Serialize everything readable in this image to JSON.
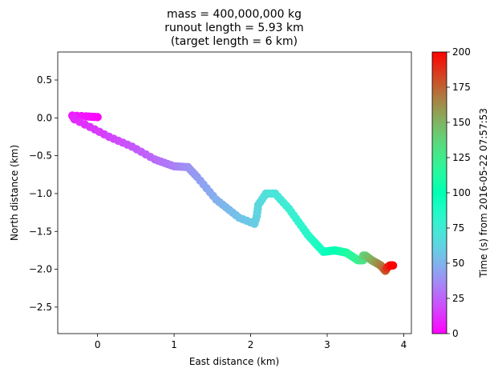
{
  "chart_data": {
    "type": "scatter",
    "title_lines": [
      "mass = 400,000,000 kg",
      "runout length = 5.93 km",
      "(target length = 6 km)"
    ],
    "xlabel": "East distance (km)",
    "ylabel": "North distance (km)",
    "xlim": [
      -0.52,
      4.1
    ],
    "ylim": [
      -2.85,
      0.87
    ],
    "xticks": [
      0,
      1,
      2,
      3,
      4
    ],
    "yticks": [
      0.5,
      0.0,
      -0.5,
      -1.0,
      -1.5,
      -2.0,
      -2.5
    ],
    "xtick_labels": [
      "0",
      "1",
      "2",
      "3",
      "4"
    ],
    "ytick_labels": [
      "0.5",
      "0.0",
      "−0.5",
      "−1.0",
      "−1.5",
      "−2.0",
      "−2.5"
    ],
    "grid": false,
    "colorbar": {
      "label": "Time (s) from 2016-05-22 07:57:53",
      "min": 0,
      "max": 200,
      "ticks": [
        0,
        25,
        50,
        75,
        100,
        125,
        150,
        175,
        200
      ],
      "tick_labels": [
        "0",
        "25",
        "50",
        "75",
        "100",
        "125",
        "150",
        "175",
        "200"
      ],
      "colormap": "rainbow"
    },
    "trajectory_keypoints": [
      {
        "t": 0,
        "x": 0.0,
        "y": 0.01
      },
      {
        "t": 4,
        "x": -0.15,
        "y": 0.02
      },
      {
        "t": 7,
        "x": -0.33,
        "y": 0.03
      },
      {
        "t": 10,
        "x": -0.3,
        "y": -0.02
      },
      {
        "t": 13,
        "x": -0.1,
        "y": -0.12
      },
      {
        "t": 17,
        "x": 0.15,
        "y": -0.25
      },
      {
        "t": 22,
        "x": 0.45,
        "y": -0.38
      },
      {
        "t": 27,
        "x": 0.75,
        "y": -0.55
      },
      {
        "t": 33,
        "x": 1.0,
        "y": -0.64
      },
      {
        "t": 38,
        "x": 1.18,
        "y": -0.65
      },
      {
        "t": 42,
        "x": 1.3,
        "y": -0.78
      },
      {
        "t": 48,
        "x": 1.55,
        "y": -1.08
      },
      {
        "t": 55,
        "x": 1.85,
        "y": -1.32
      },
      {
        "t": 59,
        "x": 2.05,
        "y": -1.4
      },
      {
        "t": 61,
        "x": 2.08,
        "y": -1.3
      },
      {
        "t": 64,
        "x": 2.1,
        "y": -1.15
      },
      {
        "t": 68,
        "x": 2.2,
        "y": -1.0
      },
      {
        "t": 71,
        "x": 2.32,
        "y": -1.0
      },
      {
        "t": 76,
        "x": 2.5,
        "y": -1.2
      },
      {
        "t": 84,
        "x": 2.75,
        "y": -1.55
      },
      {
        "t": 92,
        "x": 2.95,
        "y": -1.77
      },
      {
        "t": 100,
        "x": 3.1,
        "y": -1.75
      },
      {
        "t": 110,
        "x": 3.25,
        "y": -1.78
      },
      {
        "t": 120,
        "x": 3.4,
        "y": -1.88
      },
      {
        "t": 128,
        "x": 3.47,
        "y": -1.88
      },
      {
        "t": 133,
        "x": 3.47,
        "y": -1.82
      },
      {
        "t": 140,
        "x": 3.5,
        "y": -1.82
      },
      {
        "t": 150,
        "x": 3.58,
        "y": -1.88
      },
      {
        "t": 165,
        "x": 3.7,
        "y": -1.95
      },
      {
        "t": 175,
        "x": 3.76,
        "y": -2.02
      },
      {
        "t": 185,
        "x": 3.78,
        "y": -1.98
      },
      {
        "t": 195,
        "x": 3.82,
        "y": -1.95
      },
      {
        "t": 200,
        "x": 3.86,
        "y": -1.95
      }
    ]
  }
}
